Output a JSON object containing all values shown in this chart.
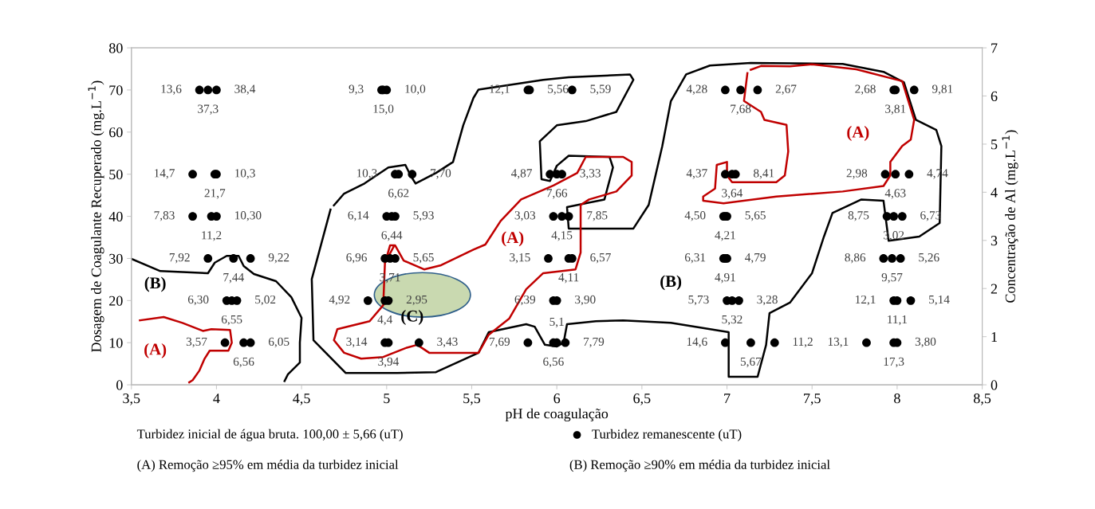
{
  "chart_data": {
    "type": "scatter",
    "xlabel": "pH de coagulação",
    "ylabel": "Dosagem de Coagulante Recuperado (mg.L$^{−1}$)",
    "y2label": "Concentração de Al (mg.L$^{−1}$)",
    "xlim": [
      3.5,
      8.5
    ],
    "xticks": [
      {
        "value": 3.5,
        "label": "3,5"
      },
      4,
      {
        "value": 4.5,
        "label": "4,5"
      },
      5,
      {
        "value": 5.5,
        "label": "5,5"
      },
      6,
      {
        "value": 6.5,
        "label": "6,5"
      },
      7,
      {
        "value": 7.5,
        "label": "7,5"
      },
      8,
      {
        "value": 8.5,
        "label": "8,5"
      }
    ],
    "ylim": [
      0,
      80
    ],
    "yticks": [
      0,
      10,
      20,
      30,
      40,
      50,
      60,
      70,
      80
    ],
    "y2lim": [
      0,
      7
    ],
    "y2ticks": [
      0,
      1,
      2,
      3,
      4,
      5,
      6,
      7
    ],
    "grid": false,
    "legend": "bottom",
    "marker": "circle",
    "series": [
      {
        "name": "Turbidez remanescente (uT)",
        "color": "#000000",
        "x": [
          3.9,
          3.95,
          4.0,
          4.97,
          4.98,
          5.0,
          5.83,
          5.84,
          6.09,
          6.99,
          7.08,
          7.18,
          7.98,
          7.99,
          8.1,
          3.86,
          3.99,
          4.0,
          5.05,
          5.07,
          5.15,
          5.96,
          6.0,
          6.03,
          6.99,
          7.03,
          7.05,
          7.93,
          7.99,
          8.07,
          3.86,
          3.97,
          4.0,
          5.0,
          5.03,
          5.05,
          5.98,
          6.03,
          6.07,
          6.98,
          6.99,
          7.0,
          7.94,
          7.98,
          8.03,
          3.95,
          4.1,
          4.2,
          4.99,
          5.02,
          5.05,
          5.95,
          6.07,
          6.09,
          6.98,
          6.99,
          7.0,
          7.92,
          7.97,
          8.02,
          4.06,
          4.09,
          4.12,
          4.89,
          4.99,
          5.01,
          5.98,
          6.0,
          7.0,
          7.03,
          7.07,
          7.98,
          8.0,
          8.08,
          4.05,
          4.16,
          4.2,
          4.99,
          5.01,
          5.19,
          5.83,
          5.98,
          6.0,
          6.05,
          6.99,
          7.14,
          7.28,
          7.82,
          7.98,
          8.0
        ],
        "values": [
          70,
          70,
          70,
          70,
          70,
          70,
          70,
          70,
          70,
          70,
          70,
          70,
          70,
          70,
          70,
          50,
          50,
          50,
          50,
          50,
          50,
          50,
          50,
          50,
          50,
          50,
          50,
          50,
          50,
          50,
          40,
          40,
          40,
          40,
          40,
          40,
          40,
          40,
          40,
          40,
          40,
          40,
          40,
          40,
          40,
          30,
          30,
          30,
          30,
          30,
          30,
          30,
          30,
          30,
          30,
          30,
          30,
          30,
          30,
          30,
          20,
          20,
          20,
          20,
          20,
          20,
          20,
          20,
          20,
          20,
          20,
          20,
          20,
          20,
          10,
          10,
          10,
          10,
          10,
          10,
          10,
          10,
          10,
          10,
          10,
          10,
          10,
          10,
          10,
          10
        ]
      },
      {
        "type": "line",
        "marker": "none",
        "color": "#000000",
        "x": [
          3.5,
          3.67,
          3.95,
          3.99,
          4.06,
          4.13,
          4.16,
          4.22,
          4.35,
          4.44,
          4.5,
          4.49,
          4.49,
          4.42,
          4.4
        ],
        "values": [
          29.9,
          27.0,
          26.5,
          29.0,
          30.6,
          30.6,
          28.2,
          26.3,
          24.6,
          20.8,
          15.9,
          10.0,
          5.3,
          2.5,
          0.9
        ]
      },
      {
        "type": "line",
        "marker": "none",
        "color": "#c00000",
        "x": [
          3.55,
          3.69,
          3.8,
          3.92,
          3.97,
          4.08,
          4.09,
          4.07,
          3.96,
          3.93,
          3.9,
          3.86,
          3.84
        ],
        "values": [
          15.3,
          16.1,
          14.7,
          12.8,
          13.2,
          13.0,
          10.0,
          8.1,
          8.1,
          6.2,
          3.4,
          1.1,
          0.6
        ]
      },
      {
        "type": "line",
        "marker": "none",
        "color": "#000000",
        "x": [
          4.67,
          4.56,
          4.57,
          4.76,
          5.06,
          5.29,
          5.54,
          5.6,
          5.82,
          5.87,
          5.93,
          6.0,
          6.04,
          6.06,
          6.23,
          6.39,
          6.67,
          7.01,
          7.01,
          7.18,
          7.23,
          7.25,
          7.37,
          7.5,
          7.57,
          7.62,
          7.79,
          7.92,
          7.95,
          8.13,
          8.25,
          8.26,
          8.23,
          8.11,
          8.04,
          7.92,
          7.68,
          7.14,
          6.9,
          6.76,
          6.67,
          6.62,
          6.54,
          6.45,
          6.07,
          6.06,
          6.28,
          6.33,
          6.31,
          6.07,
          6.0,
          5.96,
          5.91,
          5.9,
          6.0,
          6.17,
          6.35,
          6.45,
          6.43,
          6.07,
          5.92,
          5.54,
          5.51,
          5.45,
          5.39,
          5.29,
          5.17,
          5.14,
          5.11,
          5.01,
          4.87,
          4.75,
          4.69
        ],
        "values": [
          41.6,
          25.1,
          10.6,
          2.8,
          2.8,
          3.0,
          7.6,
          12.5,
          14.4,
          13.8,
          9.5,
          9.1,
          10.0,
          14.4,
          15.1,
          15.3,
          14.7,
          12.5,
          1.9,
          1.9,
          9.5,
          17.0,
          19.5,
          26.5,
          35.2,
          40.8,
          44.0,
          43.7,
          34.2,
          35.2,
          38.4,
          56.7,
          60.5,
          62.9,
          71.8,
          74.3,
          76.2,
          76.4,
          75.8,
          73.7,
          67.3,
          56.7,
          42.7,
          37.1,
          37.1,
          42.2,
          44.0,
          51.6,
          54.1,
          54.4,
          52.0,
          48.4,
          48.8,
          57.8,
          61.6,
          62.6,
          64.8,
          72.4,
          73.7,
          73.0,
          72.4,
          70.1,
          68.1,
          61.6,
          52.9,
          50.3,
          47.8,
          49.7,
          52.2,
          51.6,
          47.8,
          45.4,
          42.6
        ]
      },
      {
        "type": "line",
        "marker": "none",
        "color": "#c00000",
        "x": [
          5.04,
          4.99,
          4.98,
          4.9,
          4.71,
          4.69,
          4.75,
          4.85,
          4.98,
          5.11,
          5.18,
          5.25,
          5.54,
          5.6,
          5.72,
          5.82,
          5.92,
          6.11,
          6.14,
          6.14,
          6.19,
          6.35,
          6.44,
          6.44,
          6.39,
          6.17,
          6.12,
          5.98,
          5.79,
          5.67,
          5.58,
          5.51,
          5.32,
          5.22,
          5.1,
          5.05,
          5.02,
          4.99
        ],
        "values": [
          32.7,
          28.9,
          18.9,
          15.1,
          13.2,
          10.6,
          7.6,
          6.2,
          6.6,
          8.7,
          9.5,
          7.6,
          7.6,
          11.9,
          15.7,
          22.7,
          26.5,
          27.4,
          31.4,
          42.7,
          44.0,
          45.9,
          49.7,
          52.9,
          54.1,
          54.1,
          50.3,
          47.3,
          44.0,
          38.9,
          33.3,
          32.1,
          28.4,
          27.4,
          29.5,
          33.1,
          33.1,
          28.9
        ]
      },
      {
        "type": "line",
        "marker": "none",
        "color": "#c00000",
        "x": [
          7.12,
          7.1,
          7.2,
          7.22,
          7.35,
          7.36,
          7.34,
          7.29,
          7.03,
          7.0,
          7.0,
          6.94,
          6.93,
          6.86,
          6.86,
          6.98,
          7.29,
          7.68,
          7.92,
          7.96,
          7.96,
          8.03,
          8.08,
          8.1,
          8.03,
          7.76,
          7.5,
          7.37,
          7.2,
          7.14
        ],
        "values": [
          74.0,
          67.4,
          64.8,
          62.9,
          61.7,
          55.4,
          49.7,
          48.1,
          48.1,
          49.7,
          52.9,
          52.2,
          46.6,
          44.7,
          43.7,
          43.1,
          44.7,
          45.9,
          47.2,
          49.7,
          52.9,
          56.7,
          58.2,
          62.9,
          72.1,
          74.9,
          76.1,
          75.6,
          75.7,
          74.8
        ]
      }
    ],
    "annotations": [
      {
        "text": "13,6",
        "x": 3.9,
        "y": 70
      },
      {
        "text": "37,3",
        "x": 3.95,
        "y": 70
      },
      {
        "text": "38,4",
        "x": 4.0,
        "y": 70
      },
      {
        "text": "9,3",
        "x": 4.97,
        "y": 70
      },
      {
        "text": "15,0",
        "x": 4.98,
        "y": 70
      },
      {
        "text": "10,0",
        "x": 5.0,
        "y": 70
      },
      {
        "text": "12,1",
        "x": 5.83,
        "y": 70
      },
      {
        "text": "5,56",
        "x": 5.84,
        "y": 70
      },
      {
        "text": "5,59",
        "x": 6.09,
        "y": 70
      },
      {
        "text": "4,28",
        "x": 6.99,
        "y": 70
      },
      {
        "text": "7,68",
        "x": 7.08,
        "y": 70
      },
      {
        "text": "2,67",
        "x": 7.18,
        "y": 70
      },
      {
        "text": "2,68",
        "x": 7.98,
        "y": 70
      },
      {
        "text": "3,81",
        "x": 7.99,
        "y": 70
      },
      {
        "text": "9,81",
        "x": 8.1,
        "y": 70
      },
      {
        "text": "14,7",
        "x": 3.86,
        "y": 50
      },
      {
        "text": "21,7",
        "x": 3.99,
        "y": 50
      },
      {
        "text": "10,3",
        "x": 4.0,
        "y": 50
      },
      {
        "text": "10,3",
        "x": 5.05,
        "y": 50
      },
      {
        "text": "6,62",
        "x": 5.07,
        "y": 50
      },
      {
        "text": "7,70",
        "x": 5.15,
        "y": 50
      },
      {
        "text": "4,87",
        "x": 5.96,
        "y": 50
      },
      {
        "text": "7,66",
        "x": 6.0,
        "y": 50
      },
      {
        "text": "3,33",
        "x": 6.03,
        "y": 50
      },
      {
        "text": "4,37",
        "x": 6.99,
        "y": 50
      },
      {
        "text": "3,64",
        "x": 7.03,
        "y": 50
      },
      {
        "text": "8,41",
        "x": 7.05,
        "y": 50
      },
      {
        "text": "2,98",
        "x": 7.93,
        "y": 50
      },
      {
        "text": "4,63",
        "x": 7.99,
        "y": 50
      },
      {
        "text": "4,74",
        "x": 8.07,
        "y": 50
      },
      {
        "text": "7,83",
        "x": 3.86,
        "y": 40
      },
      {
        "text": "11,2",
        "x": 3.97,
        "y": 40
      },
      {
        "text": "10,30",
        "x": 4.0,
        "y": 40
      },
      {
        "text": "6,14",
        "x": 5.0,
        "y": 40
      },
      {
        "text": "6,44",
        "x": 5.03,
        "y": 40
      },
      {
        "text": "5,93",
        "x": 5.05,
        "y": 40
      },
      {
        "text": "3,03",
        "x": 5.98,
        "y": 40
      },
      {
        "text": "4,15",
        "x": 6.03,
        "y": 40
      },
      {
        "text": "7,85",
        "x": 6.07,
        "y": 40
      },
      {
        "text": "4,50",
        "x": 6.98,
        "y": 40
      },
      {
        "text": "4,21",
        "x": 6.99,
        "y": 40
      },
      {
        "text": "5,65",
        "x": 7.0,
        "y": 40
      },
      {
        "text": "8,75",
        "x": 7.94,
        "y": 40
      },
      {
        "text": "3,02",
        "x": 7.98,
        "y": 40
      },
      {
        "text": "6,73",
        "x": 8.03,
        "y": 40
      },
      {
        "text": "7,92",
        "x": 3.95,
        "y": 30
      },
      {
        "text": "7,44",
        "x": 4.1,
        "y": 30
      },
      {
        "text": "9,22",
        "x": 4.2,
        "y": 30
      },
      {
        "text": "6,96",
        "x": 4.99,
        "y": 30
      },
      {
        "text": "3,71",
        "x": 5.02,
        "y": 30
      },
      {
        "text": "5,65",
        "x": 5.05,
        "y": 30
      },
      {
        "text": "3,15",
        "x": 5.95,
        "y": 30
      },
      {
        "text": "4,11",
        "x": 6.07,
        "y": 30
      },
      {
        "text": "6,57",
        "x": 6.09,
        "y": 30
      },
      {
        "text": "6,31",
        "x": 6.98,
        "y": 30
      },
      {
        "text": "4,91",
        "x": 6.99,
        "y": 30
      },
      {
        "text": "4,79",
        "x": 7.0,
        "y": 30
      },
      {
        "text": "8,86",
        "x": 7.92,
        "y": 30
      },
      {
        "text": "9,57",
        "x": 7.97,
        "y": 30
      },
      {
        "text": "5,26",
        "x": 8.02,
        "y": 30
      },
      {
        "text": "6,30",
        "x": 4.06,
        "y": 20
      },
      {
        "text": "6,55",
        "x": 4.09,
        "y": 20
      },
      {
        "text": "5,02",
        "x": 4.12,
        "y": 20
      },
      {
        "text": "4,92",
        "x": 4.89,
        "y": 20
      },
      {
        "text": "4,4",
        "x": 4.99,
        "y": 20
      },
      {
        "text": "2,95",
        "x": 5.01,
        "y": 20
      },
      {
        "text": "6,39",
        "x": 5.98,
        "y": 20
      },
      {
        "text": "3,90",
        "x": 6.0,
        "y": 20
      },
      {
        "text": "5,73",
        "x": 7.0,
        "y": 20
      },
      {
        "text": "5,32",
        "x": 7.03,
        "y": 20
      },
      {
        "text": "3,28",
        "x": 7.07,
        "y": 20
      },
      {
        "text": "12,1",
        "x": 7.98,
        "y": 20
      },
      {
        "text": "11,1",
        "x": 8.0,
        "y": 20
      },
      {
        "text": "5,14",
        "x": 8.08,
        "y": 20
      },
      {
        "text": "3,57",
        "x": 4.05,
        "y": 10
      },
      {
        "text": "6,56",
        "x": 4.16,
        "y": 10
      },
      {
        "text": "6,05",
        "x": 4.2,
        "y": 10
      },
      {
        "text": "3,14",
        "x": 4.99,
        "y": 10
      },
      {
        "text": "3,94",
        "x": 5.01,
        "y": 10
      },
      {
        "text": "3,43",
        "x": 5.19,
        "y": 10
      },
      {
        "text": "7,69",
        "x": 5.83,
        "y": 10
      },
      {
        "text": "6,56",
        "x": 5.98,
        "y": 10
      },
      {
        "text": "5,1",
        "x": 6.0,
        "y": 10
      },
      {
        "text": "7,79",
        "x": 6.05,
        "y": 10
      },
      {
        "text": "14,6",
        "x": 6.99,
        "y": 10
      },
      {
        "text": "5,67",
        "x": 7.14,
        "y": 10
      },
      {
        "text": "11,2",
        "x": 7.28,
        "y": 10
      },
      {
        "text": "13,1",
        "x": 7.82,
        "y": 10
      },
      {
        "text": "17,3",
        "x": 7.98,
        "y": 10
      },
      {
        "text": "3,80",
        "x": 8.0,
        "y": 10
      },
      "(A)",
      "(B)",
      "(A)",
      "(C)",
      "(B)",
      "(A)",
      "Turbidez inicial de água bruta. 100,00 ± 5,66 (uT)",
      "(A) Remoção ≥95% em média da turbidez inicial",
      "(B) Remoção ≥90% em média da turbidez inicial"
    ]
  }
}
